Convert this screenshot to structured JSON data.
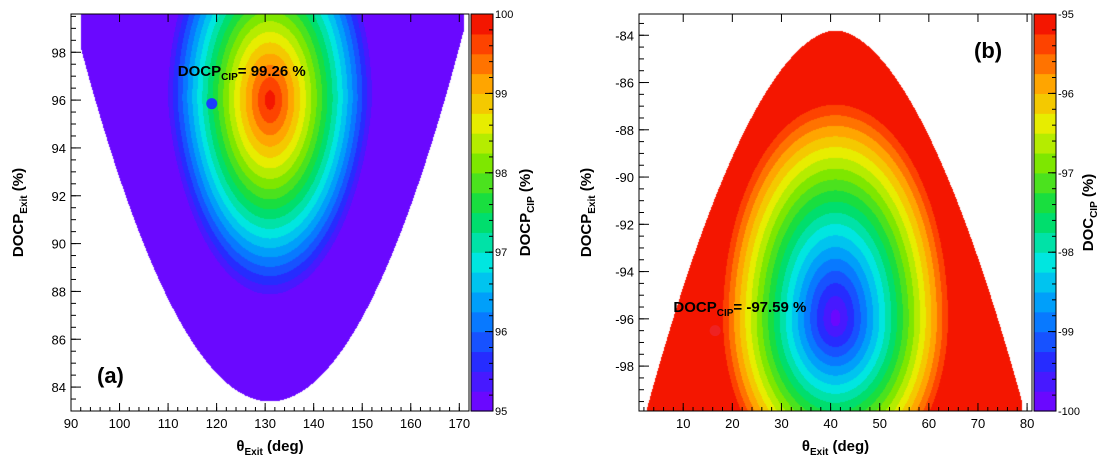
{
  "chart_data": [
    {
      "type": "heatmap",
      "panel_label": "(a)",
      "xlabel": {
        "prefix": "θ",
        "sub": "Exit",
        "suffix": " (deg)"
      },
      "ylabel": {
        "prefix": "DOCP",
        "sub": "Exit",
        "suffix": " (%)"
      },
      "zlabel": {
        "prefix": "DOCP",
        "sub": "CIP",
        "suffix": " (%)"
      },
      "xlim": [
        90,
        172
      ],
      "ylim": [
        83,
        99.6
      ],
      "zlim": [
        95,
        100
      ],
      "xticks": [
        90,
        100,
        110,
        120,
        130,
        140,
        150,
        160,
        170
      ],
      "yticks": [
        84,
        86,
        88,
        90,
        92,
        94,
        96,
        98
      ],
      "zticks": [
        95,
        96,
        97,
        98,
        99,
        100
      ],
      "colorbar_levels": 20,
      "feasible_region": {
        "apex_x": 131,
        "apex_y": 83.4,
        "top_y": 99.6,
        "top_xmin": 92,
        "top_xmax": 171,
        "left_x_at_97": 92
      },
      "peak": {
        "x": 131,
        "y": 96,
        "z": 99.9
      },
      "marker": {
        "x": 119,
        "y": 95.85,
        "color": "#1a3cff"
      },
      "annotation": {
        "prefix": "DOCP",
        "sub": "CIP",
        "suffix": "= 99.26 %",
        "x": 112,
        "y": 97
      }
    },
    {
      "type": "heatmap",
      "panel_label": "(b)",
      "xlabel": {
        "prefix": "θ",
        "sub": "Exit",
        "suffix": " (deg)"
      },
      "ylabel": {
        "prefix": "DOCP",
        "sub": "Exit",
        "suffix": " (%)"
      },
      "zlabel": {
        "prefix": "DOC",
        "sub": "CIP",
        "suffix": " (%)"
      },
      "xlim": [
        1,
        81
      ],
      "ylim": [
        -99.9,
        -83.1
      ],
      "zlim": [
        -100,
        -95
      ],
      "xticks": [
        10,
        20,
        30,
        40,
        50,
        60,
        70,
        80
      ],
      "yticks": [
        -84,
        -86,
        -88,
        -90,
        -92,
        -94,
        -96,
        -98
      ],
      "zticks": [
        -95,
        -96,
        -97,
        -98,
        -99,
        -100
      ],
      "colorbar_levels": 20,
      "feasible_region": {
        "peak_x": 41,
        "peak_y": -83.8,
        "bottom_y": -99.9,
        "bottom_xmin": 2,
        "bottom_xmax": 79
      },
      "peak": {
        "x": 41,
        "y": -96,
        "z": -99.9
      },
      "marker": {
        "x": 16.5,
        "y": -96.5,
        "color": "#ee2222"
      },
      "annotation": {
        "prefix": "DOCP",
        "sub": "CIP",
        "suffix": "= -97.59 %",
        "x": 8,
        "y": -95.7
      }
    }
  ]
}
